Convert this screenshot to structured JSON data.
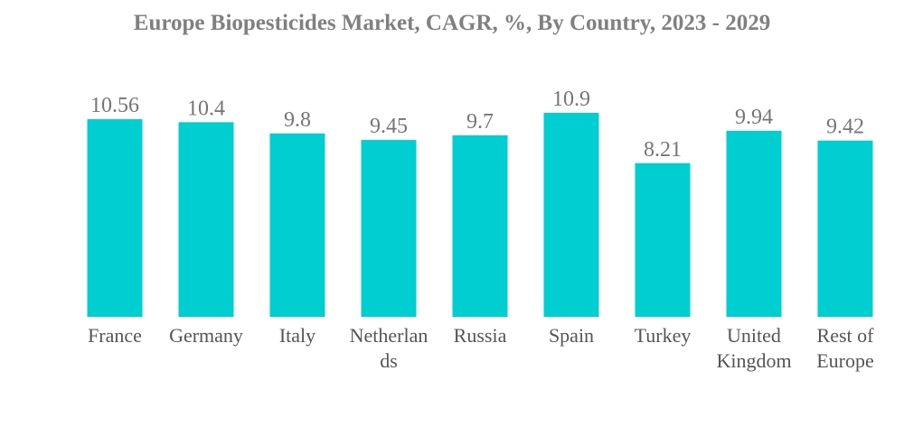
{
  "chart_data": {
    "type": "bar",
    "title": "Europe Biopesticides Market, CAGR, %, By Country, 2023 - 2029",
    "categories": [
      [
        "France"
      ],
      [
        "Germany"
      ],
      [
        "Italy"
      ],
      [
        "Netherlan",
        "ds"
      ],
      [
        "Russia"
      ],
      [
        "Spain"
      ],
      [
        "Turkey"
      ],
      [
        "United",
        "Kingdom"
      ],
      [
        "Rest of",
        "Europe"
      ]
    ],
    "values": [
      10.56,
      10.4,
      9.8,
      9.45,
      9.7,
      10.9,
      8.21,
      9.94,
      9.42
    ],
    "value_labels": [
      "10.56",
      "10.4",
      "9.8",
      "9.45",
      "9.7",
      "10.9",
      "8.21",
      "9.94",
      "9.42"
    ],
    "ylim": [
      0,
      10.9
    ],
    "xlabel": "",
    "ylabel": "",
    "grid": false,
    "bar_color": "#00CED1"
  }
}
